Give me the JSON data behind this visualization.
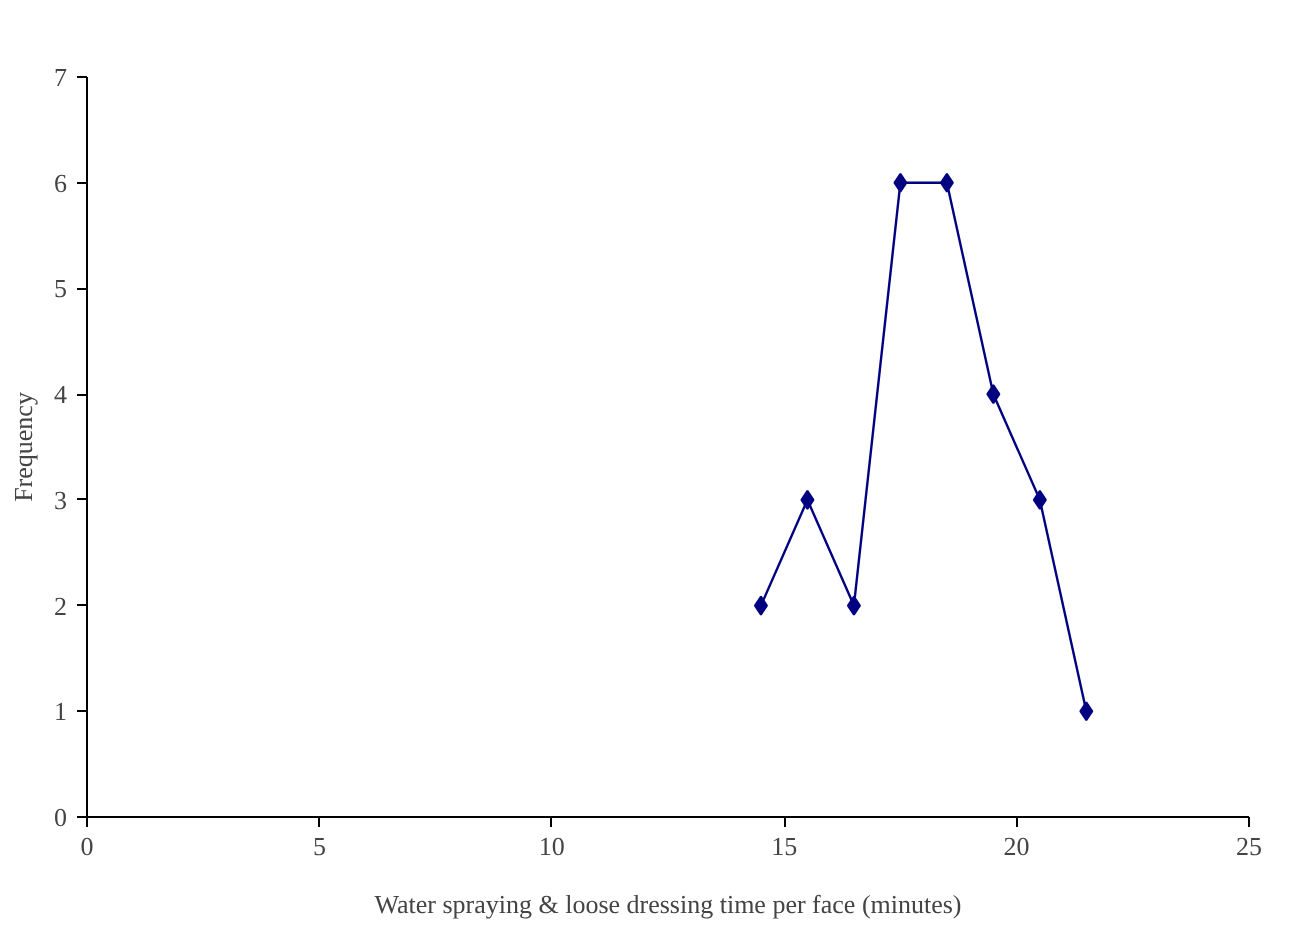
{
  "chart_data": {
    "type": "line",
    "xlabel": "Water spraying & loose dressing time per face (minutes)",
    "ylabel": "Frequency",
    "x": [
      14.5,
      15.5,
      16.5,
      17.5,
      18.5,
      19.5,
      20.5,
      21.5
    ],
    "series": [
      {
        "color": "#000080",
        "values": [
          2,
          3,
          2,
          6,
          6,
          4,
          3,
          1
        ]
      }
    ],
    "xlim": [
      0,
      25
    ],
    "xticks": [
      0,
      5,
      10,
      15,
      20,
      25
    ],
    "ylim": [
      0,
      7
    ],
    "yticks": [
      0,
      1,
      2,
      3,
      4,
      5,
      6,
      7
    ],
    "grid": false,
    "marker": "diamond",
    "line_style": "solid"
  }
}
